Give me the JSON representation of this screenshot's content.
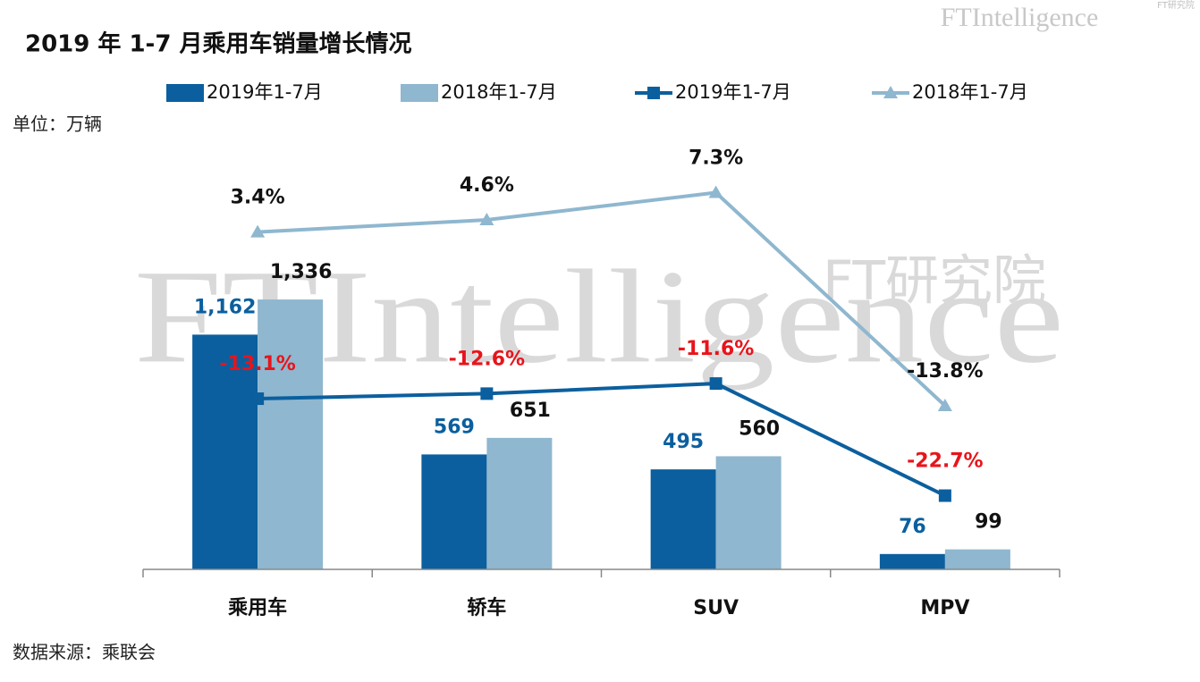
{
  "chart_data": {
    "type": "bar-line",
    "title": "2019 年 1-7 月乘用车销量增长情况",
    "unit_label": "单位：万辆",
    "source": "数据来源：乘联会",
    "watermark": [
      "FTIntelligence",
      "FT研究院"
    ],
    "categories": [
      "乘用车",
      "轿车",
      "SUV",
      "MPV"
    ],
    "ylim": [
      0,
      2000
    ],
    "y2lim": [
      -30,
      10
    ],
    "series": [
      {
        "name": "2019年1-7月",
        "type": "bar",
        "color": "#0b5f9e",
        "label_color": "#0b5f9e",
        "values": [
          1162,
          569,
          495,
          76
        ],
        "value_labels": [
          "1,162",
          "569",
          "495",
          "76"
        ]
      },
      {
        "name": "2018年1-7月",
        "type": "bar",
        "color": "#8fb7cf",
        "label_color": "#111111",
        "values": [
          1336,
          651,
          560,
          99
        ],
        "value_labels": [
          "1,336",
          "651",
          "560",
          "99"
        ]
      },
      {
        "name": "2019年1-7月",
        "type": "line",
        "axis": "y2",
        "marker": "square",
        "color": "#0b5f9e",
        "label_color": "#e8141b",
        "values": [
          -13.1,
          -12.6,
          -11.6,
          -22.7
        ],
        "value_labels": [
          "-13.1%",
          "-12.6%",
          "-11.6%",
          "-22.7%"
        ]
      },
      {
        "name": "2018年1-7月",
        "type": "line",
        "axis": "y2",
        "marker": "triangle",
        "color": "#8fb7cf",
        "label_color": "#111111",
        "values": [
          3.4,
          4.6,
          7.3,
          -13.8
        ],
        "value_labels": [
          "3.4%",
          "4.6%",
          "7.3%",
          "-13.8%"
        ]
      }
    ]
  }
}
